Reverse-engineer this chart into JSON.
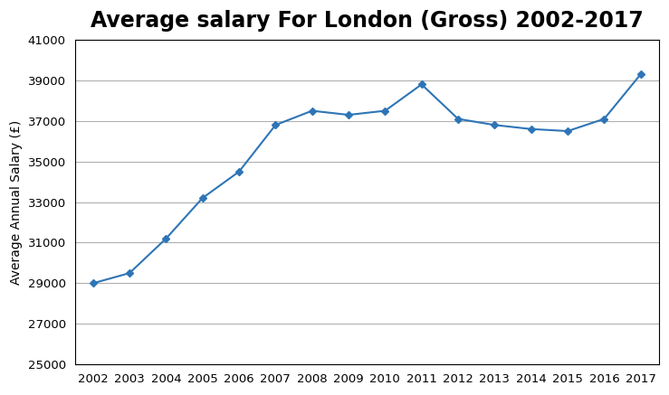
{
  "title": "Average salary For London (Gross) 2002-2017",
  "xlabel": "",
  "ylabel": "Average Annual Salary (£)",
  "years": [
    2002,
    2003,
    2004,
    2005,
    2006,
    2007,
    2008,
    2009,
    2010,
    2011,
    2012,
    2013,
    2014,
    2015,
    2016,
    2017
  ],
  "values": [
    29000,
    29500,
    31200,
    33200,
    34500,
    36800,
    37500,
    37300,
    37500,
    38800,
    37100,
    36800,
    36600,
    36500,
    37100,
    39300
  ],
  "line_color": "#2E75B6",
  "marker": "D",
  "marker_size": 4,
  "ylim": [
    25000,
    41000
  ],
  "yticks": [
    25000,
    27000,
    29000,
    31000,
    33000,
    35000,
    37000,
    39000,
    41000
  ],
  "background_color": "#ffffff",
  "grid_color": "#b0b0b0",
  "title_fontsize": 17,
  "axis_label_fontsize": 10,
  "tick_fontsize": 9.5
}
